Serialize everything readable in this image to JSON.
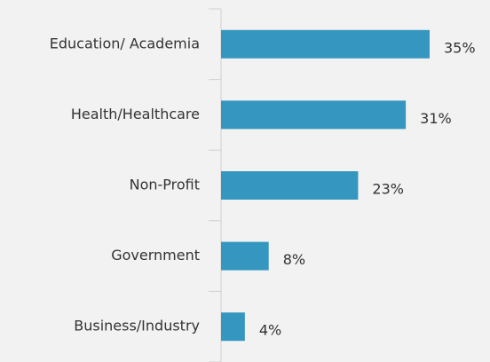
{
  "chart_data": {
    "type": "bar",
    "orientation": "horizontal",
    "categories": [
      "Education/ Academia",
      "Health/Healthcare",
      "Non-Profit",
      "Government",
      "Business/Industry"
    ],
    "values": [
      35,
      31,
      23,
      8,
      4
    ],
    "value_labels": [
      "35%",
      "31%",
      "23%",
      "8%",
      "4%"
    ],
    "color": "#3597c0"
  }
}
